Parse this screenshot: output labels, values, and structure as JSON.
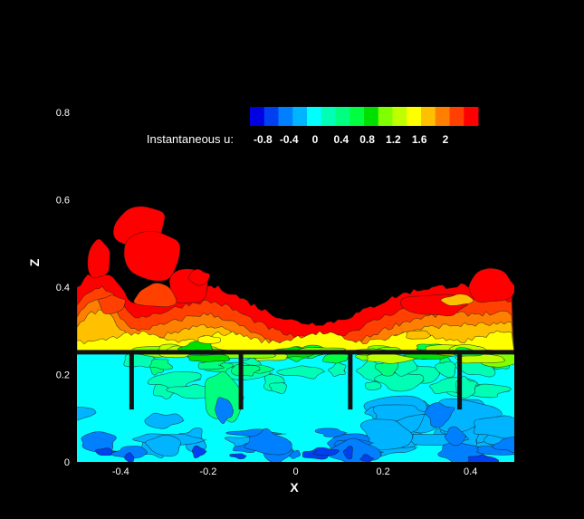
{
  "chart_data": {
    "type": "heatmap",
    "title": "",
    "xlabel": "X",
    "ylabel": "Z",
    "xlim": [
      -0.5,
      0.5
    ],
    "ylim": [
      0,
      0.8
    ],
    "x_ticks": [
      "-0.4",
      "-0.2",
      "0",
      "0.2",
      "0.4"
    ],
    "x_tick_values": [
      -0.4,
      -0.2,
      0,
      0.2,
      0.4
    ],
    "y_ticks": [
      "0",
      "0.2",
      "0.4",
      "0.6",
      "0.8"
    ],
    "y_tick_values": [
      0,
      0.2,
      0.4,
      0.6,
      0.8
    ],
    "colorbar": {
      "title": "Instantaneous u:",
      "levels": 14,
      "range": [
        -1.0,
        2.5
      ],
      "labels": [
        "-0.8",
        "-0.4",
        "0",
        "0.4",
        "0.8",
        "1.2",
        "1.6",
        "2"
      ],
      "label_values": [
        -0.8,
        -0.4,
        0,
        0.4,
        0.8,
        1.2,
        1.6,
        2
      ],
      "colors": [
        "#0000e0",
        "#0040f0",
        "#0080ff",
        "#00b4ff",
        "#00ffff",
        "#00ffb4",
        "#00ff80",
        "#00ff40",
        "#00e000",
        "#80ff00",
        "#c0ff00",
        "#ffff00",
        "#ffc000",
        "#ff8000",
        "#ff4000",
        "#ff0000"
      ]
    },
    "canopy": {
      "top_z": 0.25,
      "stem_bottom_z": 0.12,
      "stem_x": [
        -0.375,
        -0.125,
        0.125,
        0.375
      ]
    }
  }
}
